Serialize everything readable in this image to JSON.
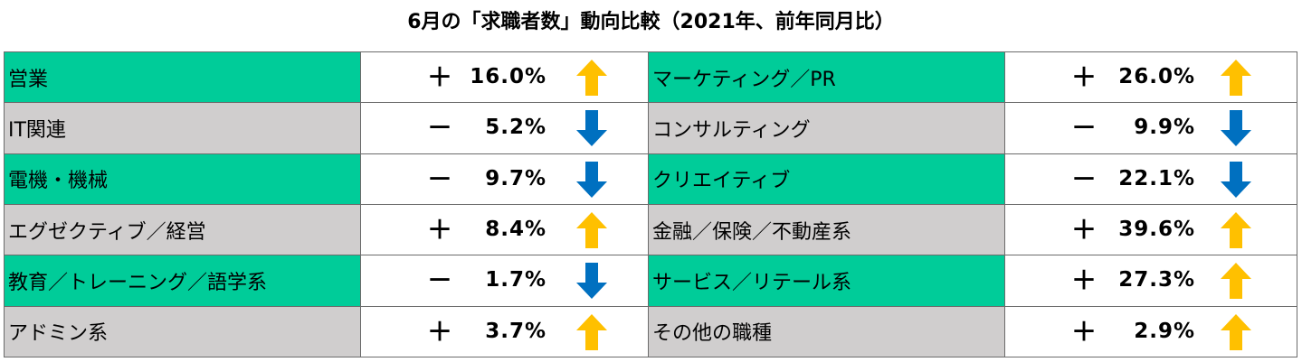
{
  "title": "6月の「求職者数」動向比較（2021年、前年同月比）",
  "colors": {
    "green": "#00cc99",
    "gray": "#d0cece",
    "up": "#ffc000",
    "down": "#0070c0"
  },
  "rows": [
    {
      "left": {
        "label": "営業",
        "sign": "＋",
        "value": "16.0%",
        "direction": "up",
        "shade": "green"
      },
      "right": {
        "label": "マーケティング／PR",
        "sign": "＋",
        "value": "26.0%",
        "direction": "up",
        "shade": "green"
      }
    },
    {
      "left": {
        "label": "IT関連",
        "sign": "－",
        "value": "5.2%",
        "direction": "down",
        "shade": "gray"
      },
      "right": {
        "label": "コンサルティング",
        "sign": "－",
        "value": "9.9%",
        "direction": "down",
        "shade": "gray"
      }
    },
    {
      "left": {
        "label": "電機・機械",
        "sign": "－",
        "value": "9.7%",
        "direction": "down",
        "shade": "green"
      },
      "right": {
        "label": "クリエイティブ",
        "sign": "－",
        "value": "22.1%",
        "direction": "down",
        "shade": "green"
      }
    },
    {
      "left": {
        "label": "エグゼクティブ／経営",
        "sign": "＋",
        "value": "8.4%",
        "direction": "up",
        "shade": "gray"
      },
      "right": {
        "label": "金融／保険／不動産系",
        "sign": "＋",
        "value": "39.6%",
        "direction": "up",
        "shade": "gray"
      }
    },
    {
      "left": {
        "label": "教育／トレーニング／語学系",
        "sign": "－",
        "value": "1.7%",
        "direction": "down",
        "shade": "green"
      },
      "right": {
        "label": "サービス／リテール系",
        "sign": "＋",
        "value": "27.3%",
        "direction": "up",
        "shade": "green"
      }
    },
    {
      "left": {
        "label": "アドミン系",
        "sign": "＋",
        "value": "3.7%",
        "direction": "up",
        "shade": "gray"
      },
      "right": {
        "label": "その他の職種",
        "sign": "＋",
        "value": "2.9%",
        "direction": "up",
        "shade": "gray"
      }
    }
  ]
}
